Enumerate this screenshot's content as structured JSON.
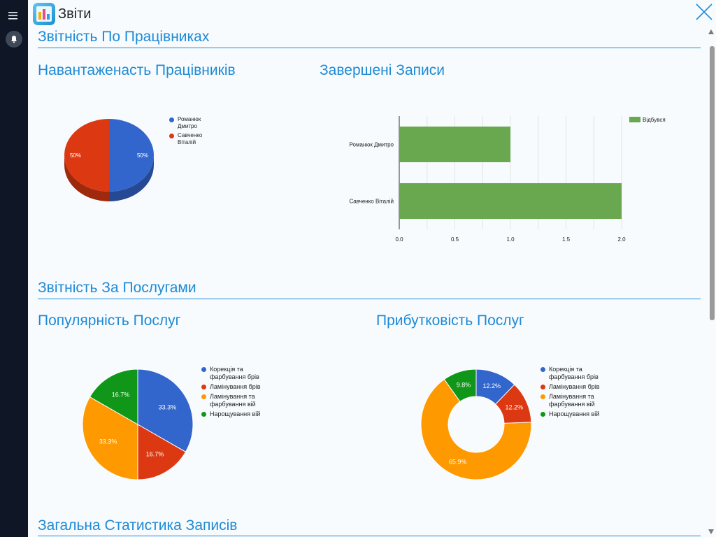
{
  "header": {
    "title": "Звіти"
  },
  "sections": {
    "staff": "Звітність По Працівниках",
    "services": "Звітність За Послугами",
    "general": "Загальна Статистика Записів"
  },
  "charts_titles": {
    "workload": "Навантаженасть Працівників",
    "completed": "Завершені Записи",
    "popularity": "Популярність Послуг",
    "profitability": "Прибутковість Послуг"
  },
  "chart_data": [
    {
      "type": "pie",
      "title": "Навантаженасть Працівників",
      "categories": [
        "Романюк Дмитро",
        "Савченко Віталій"
      ],
      "values": [
        50,
        50
      ],
      "labels": [
        "50%",
        "50%"
      ],
      "colors": [
        "#3366cc",
        "#dc3912"
      ],
      "legend": "right"
    },
    {
      "type": "bar",
      "orientation": "horizontal",
      "title": "Завершені Записи",
      "categories": [
        "Романюк Дмитро",
        "Савченко Віталій"
      ],
      "series": [
        {
          "name": "Відбувся",
          "values": [
            1,
            2
          ],
          "color": "#6aa84f"
        }
      ],
      "xlim": [
        0,
        2
      ],
      "ticks": [
        "0.0",
        "0.5",
        "1.0",
        "1.5",
        "2.0"
      ],
      "grid": true,
      "legend": "top-right"
    },
    {
      "type": "pie",
      "title": "Популярність Послуг",
      "categories": [
        "Корекція та фарбування брів",
        "Ламінування брів",
        "Ламінування та фарбування вій",
        "Нарощування вій"
      ],
      "values": [
        33.3,
        16.7,
        33.3,
        16.7
      ],
      "labels": [
        "33.3%",
        "16.7%",
        "33.3%",
        "16.7%"
      ],
      "colors": [
        "#3366cc",
        "#dc3912",
        "#ff9900",
        "#109618"
      ],
      "legend": "right"
    },
    {
      "type": "pie",
      "donut": true,
      "title": "Прибутковість Послуг",
      "categories": [
        "Корекція та фарбування брів",
        "Ламінування брів",
        "Ламінування та фарбування вій",
        "Нарощування вій"
      ],
      "values": [
        12.2,
        12.2,
        65.9,
        9.8
      ],
      "labels": [
        "12.2%",
        "12.2%",
        "65.9%",
        "9.8%"
      ],
      "colors": [
        "#3366cc",
        "#dc3912",
        "#ff9900",
        "#109618"
      ],
      "legend": "right"
    }
  ],
  "icons": {
    "menu": "menu-icon",
    "bell": "bell-icon",
    "app": "reports-app-icon",
    "close": "close-icon"
  }
}
